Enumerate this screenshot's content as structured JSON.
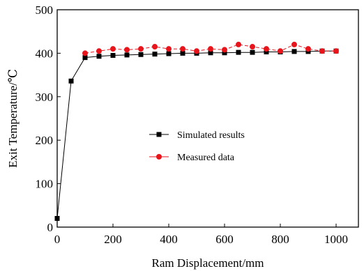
{
  "chart_data": {
    "type": "line",
    "title": "",
    "xlabel": "Ram Displacement/mm",
    "ylabel": "Exit Temperature/℃",
    "xlim": [
      0,
      1080
    ],
    "ylim": [
      0,
      500
    ],
    "xticks": [
      0,
      200,
      400,
      600,
      800,
      1000
    ],
    "yticks": [
      0,
      100,
      200,
      300,
      400,
      500
    ],
    "grid": false,
    "legend_position": "center",
    "series": [
      {
        "name": "Simulated results",
        "color": "#000000",
        "marker": "square",
        "x": [
          0,
          50,
          100,
          150,
          200,
          250,
          300,
          350,
          400,
          450,
          500,
          550,
          600,
          650,
          700,
          750,
          800,
          850,
          900,
          950,
          1000
        ],
        "y": [
          20,
          336,
          390,
          393,
          395,
          396,
          397,
          398,
          399,
          400,
          400,
          401,
          401,
          402,
          402,
          403,
          403,
          404,
          404,
          405,
          405
        ]
      },
      {
        "name": "Measured data",
        "color": "#e8141b",
        "marker": "circle",
        "x": [
          100,
          150,
          200,
          250,
          300,
          350,
          400,
          450,
          500,
          550,
          600,
          650,
          700,
          750,
          800,
          850,
          900,
          950,
          1000
        ],
        "y": [
          400,
          405,
          410,
          408,
          410,
          415,
          410,
          410,
          405,
          410,
          408,
          420,
          415,
          410,
          405,
          420,
          410,
          405,
          405
        ]
      }
    ]
  }
}
